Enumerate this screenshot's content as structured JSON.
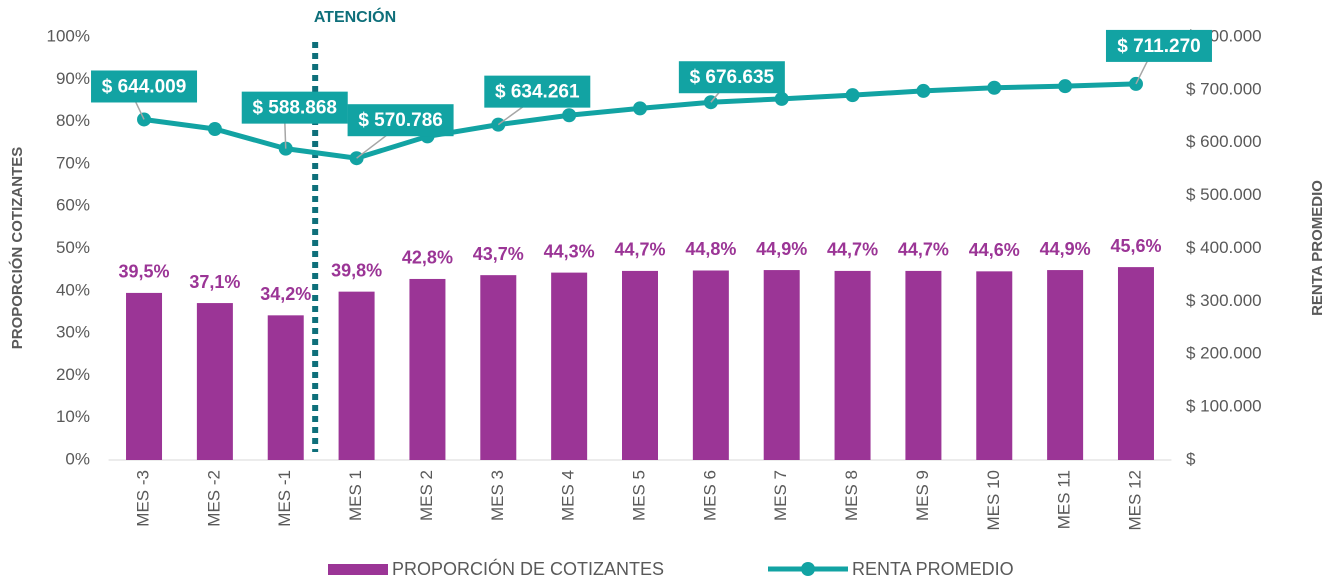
{
  "chart_data": {
    "type": "combo",
    "annotation": "ATENCIÓN",
    "y_label": "PROPORCIÓN COTIZANTES",
    "y2_label": "RENTA PROMEDIO",
    "categories": [
      "MES -3",
      "MES -2",
      "MES -1",
      "MES 1",
      "MES 2",
      "MES 3",
      "MES 4",
      "MES 5",
      "MES 6",
      "MES 7",
      "MES 8",
      "MES 9",
      "MES 10",
      "MES 11",
      "MES 12"
    ],
    "series": [
      {
        "name": "PROPORCIÓN DE COTIZANTES",
        "type": "bar",
        "color": "#9b3596",
        "values": [
          39.5,
          37.1,
          34.2,
          39.8,
          42.8,
          43.7,
          44.3,
          44.7,
          44.8,
          44.9,
          44.7,
          44.7,
          44.6,
          44.9,
          45.6
        ],
        "value_labels": [
          "39,5%",
          "37,1%",
          "34,2%",
          "39,8%",
          "42,8%",
          "43,7%",
          "44,3%",
          "44,7%",
          "44,8%",
          "44,9%",
          "44,7%",
          "44,7%",
          "44,6%",
          "44,9%",
          "45,6%"
        ]
      },
      {
        "name": "RENTA PROMEDIO",
        "type": "line",
        "axis": "y2",
        "color": "#12a3a3",
        "values": [
          644009,
          626000,
          588868,
          570786,
          612000,
          634261,
          652000,
          665000,
          676635,
          683000,
          690000,
          698000,
          704000,
          707000,
          711270
        ],
        "value_labels": [
          "$ 644.009",
          null,
          "$ 588.868",
          "$ 570.786",
          null,
          "$ 634.261",
          null,
          null,
          "$ 676.635",
          null,
          null,
          null,
          null,
          null,
          "$ 711.270"
        ]
      }
    ],
    "ylim": [
      0,
      100
    ],
    "yticks": [
      {
        "value": 0,
        "label": "0%"
      },
      {
        "value": 10,
        "label": "10%"
      },
      {
        "value": 20,
        "label": "20%"
      },
      {
        "value": 30,
        "label": "30%"
      },
      {
        "value": 40,
        "label": "40%"
      },
      {
        "value": 50,
        "label": "50%"
      },
      {
        "value": 60,
        "label": "60%"
      },
      {
        "value": 70,
        "label": "70%"
      },
      {
        "value": 80,
        "label": "80%"
      },
      {
        "value": 90,
        "label": "90%"
      },
      {
        "value": 100,
        "label": "100%"
      }
    ],
    "y2lim": [
      0,
      800000
    ],
    "y2ticks": [
      {
        "value": 0,
        "label": "$"
      },
      {
        "value": 100000,
        "label": "$ 100.000"
      },
      {
        "value": 200000,
        "label": "$ 200.000"
      },
      {
        "value": 300000,
        "label": "$ 300.000"
      },
      {
        "value": 400000,
        "label": "$ 400.000"
      },
      {
        "value": 500000,
        "label": "$ 500.000"
      },
      {
        "value": 600000,
        "label": "$ 600.000"
      },
      {
        "value": 700000,
        "label": "$ 700.000"
      },
      {
        "value": 800000,
        "label": "$ 800.000"
      }
    ],
    "grid": false,
    "legend": "bottom"
  }
}
